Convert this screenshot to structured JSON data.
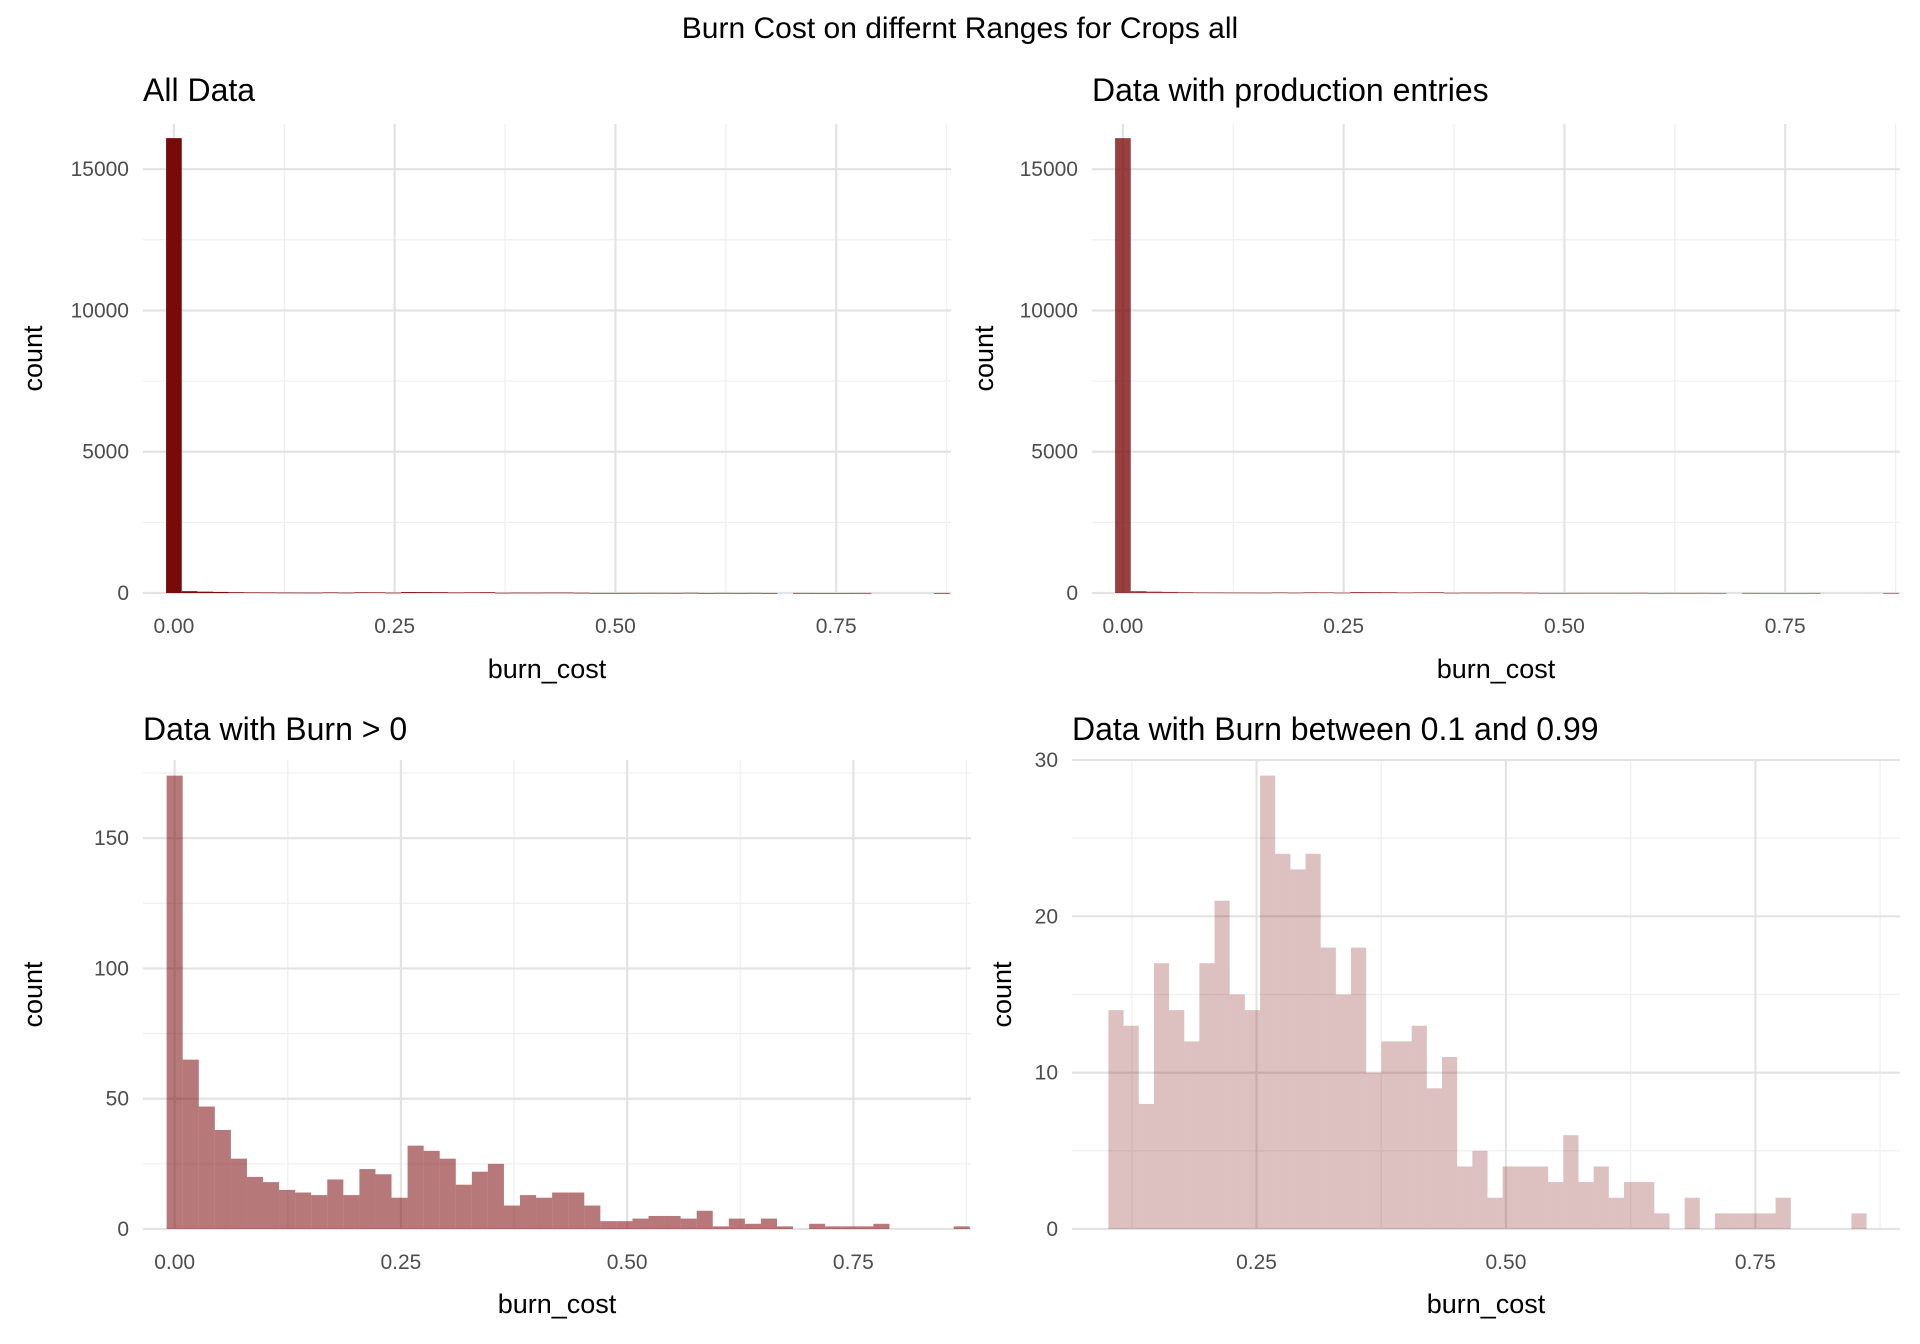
{
  "suptitle": "Burn Cost on differnt Ranges for Crops all",
  "chart_data": [
    {
      "type": "bar",
      "title": "All Data",
      "xlabel": "burn_cost",
      "ylabel": "count",
      "color": "#7a0a0a",
      "bar_opacity": 1.0,
      "bin_width": 0.01775,
      "xlim": [
        -0.035,
        0.88
      ],
      "ylim": [
        0,
        16600
      ],
      "x_ticks": [
        0.0,
        0.25,
        0.5,
        0.75
      ],
      "x_tick_labels": [
        "0.00",
        "0.25",
        "0.50",
        "0.75"
      ],
      "y_ticks": [
        0,
        5000,
        10000,
        15000
      ],
      "y_tick_labels": [
        "0",
        "5000",
        "10000",
        "15000"
      ],
      "grid": true,
      "bins": [
        -0.00887,
        0.00888,
        0.02663,
        0.04438,
        0.06213,
        0.07988,
        0.09763,
        0.11538,
        0.13313,
        0.15088,
        0.16863,
        0.18638,
        0.20413,
        0.22188,
        0.23963,
        0.25738,
        0.27513,
        0.29288,
        0.31063,
        0.32838,
        0.34613,
        0.36388,
        0.38163,
        0.39938,
        0.41713,
        0.43488,
        0.45263,
        0.47038,
        0.48813,
        0.50588,
        0.52363,
        0.54138,
        0.55913,
        0.57688,
        0.59463,
        0.61238,
        0.63013,
        0.64788,
        0.66563,
        0.68338,
        0.70113,
        0.71888,
        0.73663,
        0.75438,
        0.77213,
        0.78988,
        0.80763,
        0.82538,
        0.84313,
        0.86088
      ],
      "counts": [
        16100,
        65,
        47,
        38,
        27,
        20,
        18,
        15,
        14,
        13,
        19,
        13,
        23,
        21,
        12,
        32,
        30,
        27,
        17,
        22,
        25,
        9,
        13,
        12,
        14,
        14,
        9,
        3,
        3,
        4,
        5,
        5,
        4,
        7,
        1,
        4,
        2,
        4,
        1,
        0,
        2,
        1,
        1,
        1,
        2,
        0,
        0,
        0,
        0,
        1
      ]
    },
    {
      "type": "bar",
      "title": "Data with production entries",
      "xlabel": "burn_cost",
      "ylabel": "count",
      "color": "#7a0a0a",
      "bar_opacity": 0.78,
      "bin_width": 0.01775,
      "xlim": [
        -0.035,
        0.88
      ],
      "ylim": [
        0,
        16600
      ],
      "x_ticks": [
        0.0,
        0.25,
        0.5,
        0.75
      ],
      "x_tick_labels": [
        "0.00",
        "0.25",
        "0.50",
        "0.75"
      ],
      "y_ticks": [
        0,
        5000,
        10000,
        15000
      ],
      "y_tick_labels": [
        "0",
        "5000",
        "10000",
        "15000"
      ],
      "grid": true,
      "bins": [
        -0.00887,
        0.00888,
        0.02663,
        0.04438,
        0.06213,
        0.07988,
        0.09763,
        0.11538,
        0.13313,
        0.15088,
        0.16863,
        0.18638,
        0.20413,
        0.22188,
        0.23963,
        0.25738,
        0.27513,
        0.29288,
        0.31063,
        0.32838,
        0.34613,
        0.36388,
        0.38163,
        0.39938,
        0.41713,
        0.43488,
        0.45263,
        0.47038,
        0.48813,
        0.50588,
        0.52363,
        0.54138,
        0.55913,
        0.57688,
        0.59463,
        0.61238,
        0.63013,
        0.64788,
        0.66563,
        0.68338,
        0.70113,
        0.71888,
        0.73663,
        0.75438,
        0.77213,
        0.78988,
        0.80763,
        0.82538,
        0.84313,
        0.86088
      ],
      "counts": [
        16100,
        65,
        47,
        38,
        27,
        20,
        18,
        15,
        14,
        13,
        19,
        13,
        23,
        21,
        12,
        32,
        30,
        27,
        17,
        22,
        25,
        9,
        13,
        12,
        14,
        14,
        9,
        3,
        3,
        4,
        5,
        5,
        4,
        7,
        1,
        4,
        2,
        4,
        1,
        0,
        2,
        1,
        1,
        1,
        2,
        0,
        0,
        0,
        0,
        1
      ]
    },
    {
      "type": "bar",
      "title": "Data with Burn > 0",
      "xlabel": "burn_cost",
      "ylabel": "count",
      "color": "#7a0a0a",
      "bar_opacity": 0.55,
      "bin_width": 0.01775,
      "xlim": [
        -0.035,
        0.88
      ],
      "ylim": [
        0,
        180
      ],
      "x_ticks": [
        0.0,
        0.25,
        0.5,
        0.75
      ],
      "x_tick_labels": [
        "0.00",
        "0.25",
        "0.50",
        "0.75"
      ],
      "y_ticks": [
        0,
        50,
        100,
        150
      ],
      "y_tick_labels": [
        "0",
        "50",
        "100",
        "150"
      ],
      "grid": true,
      "bins": [
        -0.00887,
        0.00888,
        0.02663,
        0.04438,
        0.06213,
        0.07988,
        0.09763,
        0.11538,
        0.13313,
        0.15088,
        0.16863,
        0.18638,
        0.20413,
        0.22188,
        0.23963,
        0.25738,
        0.27513,
        0.29288,
        0.31063,
        0.32838,
        0.34613,
        0.36388,
        0.38163,
        0.39938,
        0.41713,
        0.43488,
        0.45263,
        0.47038,
        0.48813,
        0.50588,
        0.52363,
        0.54138,
        0.55913,
        0.57688,
        0.59463,
        0.61238,
        0.63013,
        0.64788,
        0.66563,
        0.68338,
        0.70113,
        0.71888,
        0.73663,
        0.75438,
        0.77213,
        0.78988,
        0.80763,
        0.82538,
        0.84313,
        0.86088
      ],
      "counts": [
        174,
        65,
        47,
        38,
        27,
        20,
        18,
        15,
        14,
        13,
        19,
        13,
        23,
        21,
        12,
        32,
        30,
        27,
        17,
        22,
        25,
        9,
        13,
        12,
        14,
        14,
        9,
        3,
        3,
        4,
        5,
        5,
        4,
        7,
        1,
        4,
        2,
        4,
        1,
        0,
        2,
        1,
        1,
        1,
        2,
        0,
        0,
        0,
        0,
        1
      ]
    },
    {
      "type": "bar",
      "title": "Data with Burn between 0.1 and 0.99",
      "xlabel": "burn_cost",
      "ylabel": "count",
      "color": "#7a0a0a",
      "bar_opacity": 0.26,
      "bin_width": 0.0152,
      "xlim": [
        0.065,
        0.895
      ],
      "ylim": [
        0,
        30
      ],
      "x_ticks": [
        0.25,
        0.5,
        0.75
      ],
      "x_tick_labels": [
        "0.25",
        "0.50",
        "0.75"
      ],
      "y_ticks": [
        0,
        10,
        20,
        30
      ],
      "y_tick_labels": [
        "0",
        "10",
        "20",
        "30"
      ],
      "grid": true,
      "bins": [
        0.1015,
        0.1167,
        0.1319,
        0.1471,
        0.1623,
        0.1775,
        0.1927,
        0.2079,
        0.2231,
        0.2383,
        0.2535,
        0.2687,
        0.2839,
        0.2991,
        0.3143,
        0.3295,
        0.3447,
        0.3599,
        0.3751,
        0.3903,
        0.4055,
        0.4207,
        0.4359,
        0.4511,
        0.4663,
        0.4815,
        0.4967,
        0.5119,
        0.5271,
        0.5423,
        0.5575,
        0.5727,
        0.5879,
        0.6031,
        0.6183,
        0.6335,
        0.6487,
        0.6639,
        0.6791,
        0.6943,
        0.7095,
        0.7247,
        0.7399,
        0.7551,
        0.7703,
        0.7855,
        0.8007,
        0.8159,
        0.8311,
        0.8463
      ],
      "counts": [
        14,
        13,
        8,
        17,
        14,
        12,
        17,
        21,
        15,
        14,
        29,
        24,
        23,
        24,
        18,
        15,
        18,
        10,
        12,
        12,
        13,
        9,
        11,
        4,
        5,
        2,
        4,
        4,
        4,
        3,
        6,
        3,
        4,
        2,
        3,
        3,
        1,
        0,
        2,
        0,
        1,
        1,
        1,
        1,
        2,
        0,
        0,
        0,
        0,
        1
      ]
    }
  ]
}
